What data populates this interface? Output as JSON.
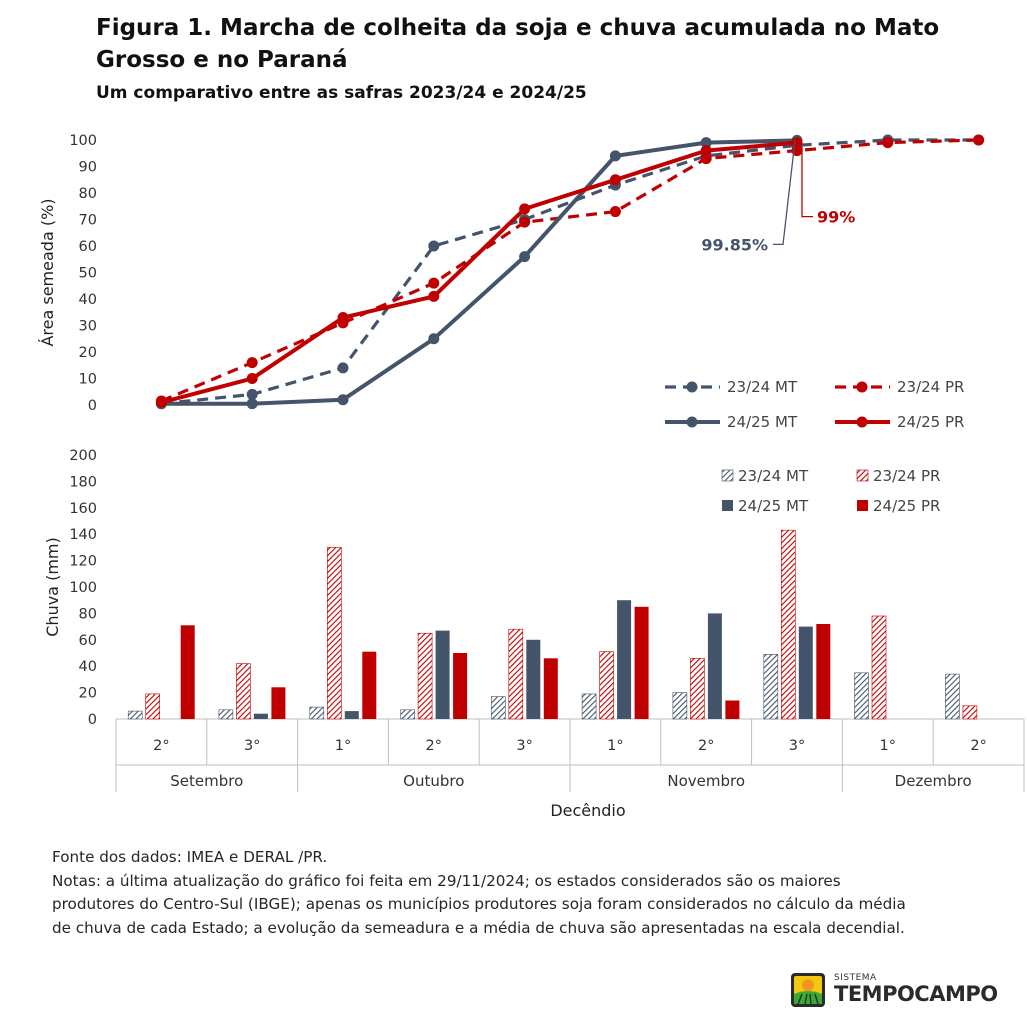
{
  "title": "Figura 1. Marcha de colheita da soja e chuva acumulada no Mato Grosso e no Paraná",
  "subtitle": "Um comparativo entre as safras 2023/24 e 2024/25",
  "notes": [
    "Fonte dos dados: IMEA e DERAL /PR.",
    "Notas: a última atualização do gráfico foi feita em 29/11/2024; os estados considerados são os maiores",
    "produtores do Centro-Sul (IBGE); apenas os municípios produtores soja foram considerados no cálculo da média",
    "de chuva de cada Estado; a evolução da semeadura e a média de chuva são apresentadas na escala decendial."
  ],
  "logo": {
    "small": "SISTEMA",
    "main": "TEMPOCAMPO"
  },
  "colors": {
    "mt": "#44546a",
    "pr": "#c00000"
  },
  "chart_data": [
    {
      "type": "line",
      "ylabel": "Área semeada (%)",
      "ylim": [
        0,
        100
      ],
      "yticks": [
        0,
        10,
        20,
        30,
        40,
        50,
        60,
        70,
        80,
        90,
        100
      ],
      "categories": [
        "Setembro 2°",
        "Setembro 3°",
        "Outubro 1°",
        "Outubro 2°",
        "Outubro 3°",
        "Novembro 1°",
        "Novembro 2°",
        "Novembro 3°",
        "Dezembro 1°",
        "Dezembro 2°"
      ],
      "series": [
        {
          "name": "23/24 MT",
          "style": "dashed",
          "color": "#44546a",
          "values": [
            0.5,
            4,
            14,
            60,
            70,
            83,
            94,
            98,
            100,
            100
          ]
        },
        {
          "name": "23/24 PR",
          "style": "dashed",
          "color": "#c00000",
          "values": [
            1.5,
            16,
            31,
            46,
            69,
            73,
            93,
            96,
            99,
            100
          ]
        },
        {
          "name": "24/25 MT",
          "style": "solid",
          "color": "#44546a",
          "values": [
            0.5,
            0.5,
            2,
            25,
            56,
            94,
            99,
            99.85,
            null,
            null
          ]
        },
        {
          "name": "24/25 PR",
          "style": "solid",
          "color": "#c00000",
          "values": [
            1,
            10,
            33,
            41,
            74,
            85,
            96,
            99,
            null,
            null
          ]
        }
      ],
      "annotations": [
        {
          "text": "99.85%",
          "series": "24/25 MT",
          "color": "#44546a"
        },
        {
          "text": "99%",
          "series": "24/25 PR",
          "color": "#c00000"
        }
      ],
      "legend": "bottom-right"
    },
    {
      "type": "bar",
      "ylabel": "Chuva (mm)",
      "xlabel": "Decêndio",
      "ylim": [
        0,
        200
      ],
      "yticks": [
        0,
        20,
        40,
        60,
        80,
        100,
        120,
        140,
        160,
        180,
        200
      ],
      "categories": [
        "2°",
        "3°",
        "1°",
        "2°",
        "3°",
        "1°",
        "2°",
        "3°",
        "1°",
        "2°"
      ],
      "month_groups": [
        {
          "label": "Setembro",
          "span": 2
        },
        {
          "label": "Outubro",
          "span": 3
        },
        {
          "label": "Novembro",
          "span": 3
        },
        {
          "label": "Dezembro",
          "span": 2
        }
      ],
      "series": [
        {
          "name": "23/24 MT",
          "fill": "hatched",
          "color": "#44546a",
          "values": [
            6,
            7,
            9,
            7,
            17,
            19,
            20,
            49,
            35,
            34
          ]
        },
        {
          "name": "23/24 PR",
          "fill": "hatched",
          "color": "#c00000",
          "values": [
            19,
            42,
            130,
            65,
            68,
            51,
            46,
            143,
            78,
            10
          ]
        },
        {
          "name": "24/25 MT",
          "fill": "solid",
          "color": "#44546a",
          "values": [
            0,
            4,
            6,
            67,
            60,
            90,
            80,
            70,
            null,
            null
          ]
        },
        {
          "name": "24/25 PR",
          "fill": "solid",
          "color": "#c00000",
          "values": [
            71,
            24,
            51,
            50,
            46,
            85,
            14,
            72,
            null,
            null
          ]
        }
      ],
      "legend": "top-right"
    }
  ]
}
